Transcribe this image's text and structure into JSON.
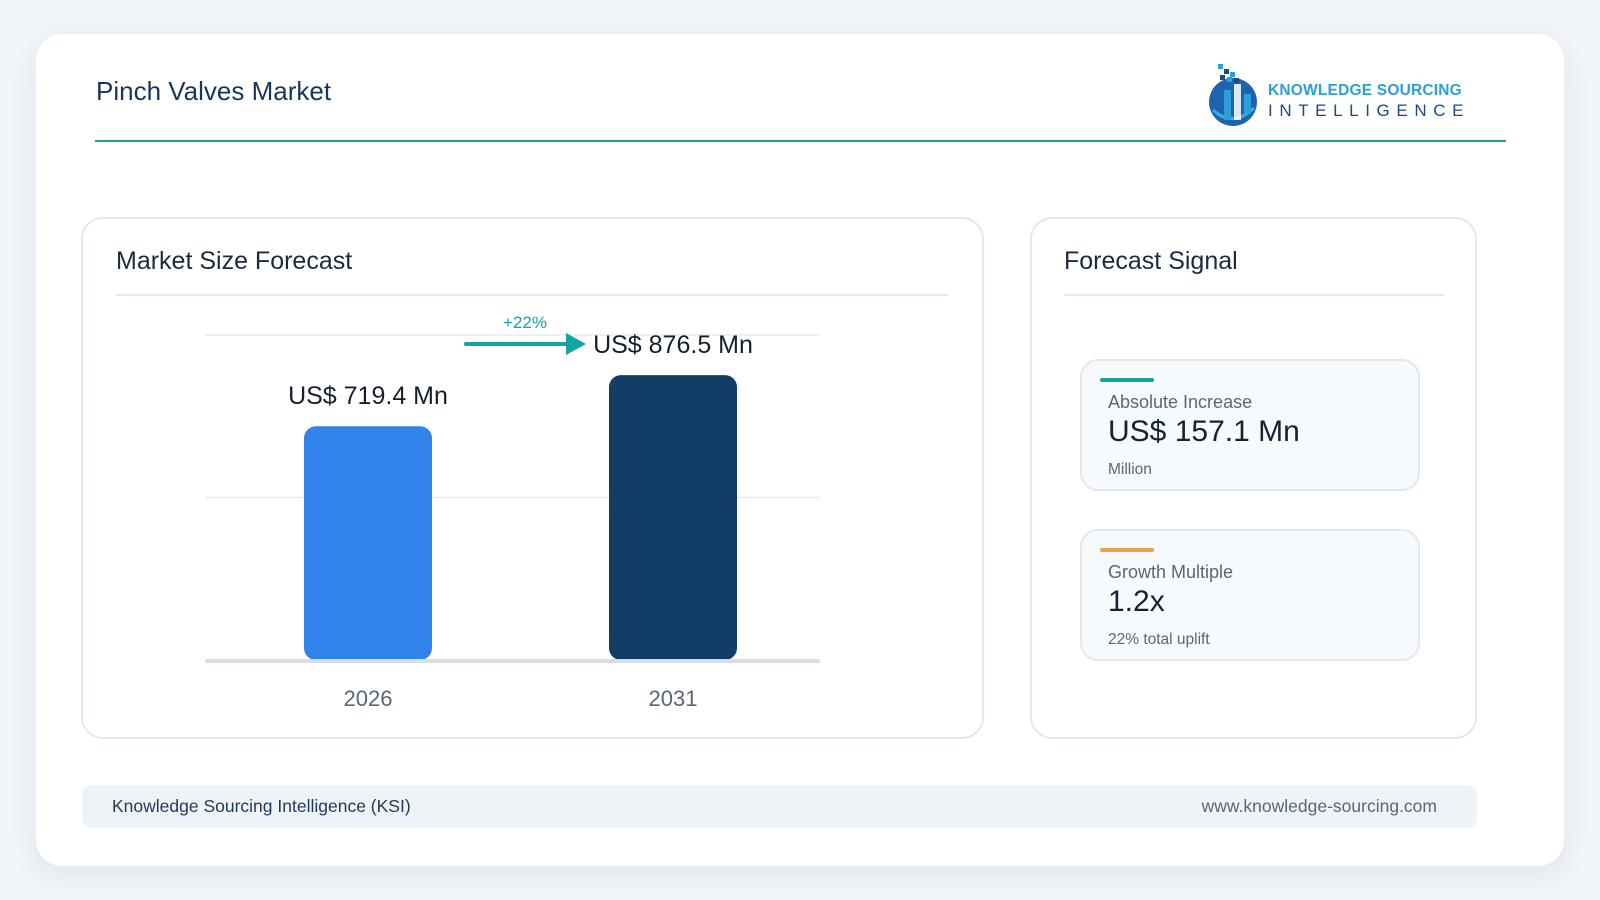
{
  "header": {
    "title": "Pinch Valves Market",
    "logo_line1": "KNOWLEDGE SOURCING",
    "logo_line2": "INTELLIGENCE"
  },
  "left_panel": {
    "title": "Market Size Forecast"
  },
  "right_panel": {
    "title": "Forecast Signal"
  },
  "metrics": [
    {
      "label": "Absolute Increase",
      "value": "US$ 157.1 Mn",
      "sub": "Million",
      "accent": "#17a2a2"
    },
    {
      "label": "Growth Multiple",
      "value": "1.2x",
      "sub": "22% total uplift",
      "accent": "#f0a04b"
    }
  ],
  "footer": {
    "left": "Knowledge Sourcing Intelligence (KSI)",
    "right": "www.knowledge-sourcing.com"
  },
  "chart_data": {
    "type": "bar",
    "categories": [
      "2026",
      "2031"
    ],
    "values": [
      719.4,
      876.5
    ],
    "data_labels": [
      "US$ 719.4 Mn",
      "US$ 876.5 Mn"
    ],
    "colors": [
      "#3083eb",
      "#123d66"
    ],
    "growth_label": "+22%",
    "growth_color": "#17a2a2",
    "ylim": [
      0,
      1000
    ],
    "grid": true
  }
}
